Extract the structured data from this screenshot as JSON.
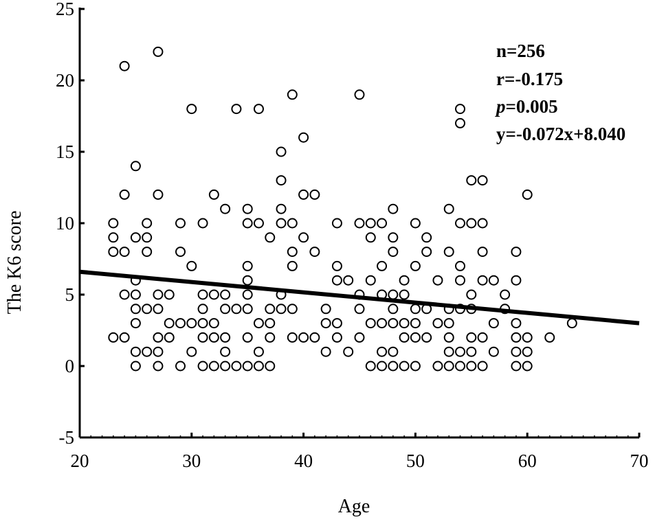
{
  "chart_data": {
    "type": "scatter",
    "xlabel": "Age",
    "ylabel": "The K6 score",
    "xlim": [
      20,
      70
    ],
    "ylim": [
      -5,
      25
    ],
    "xticks": [
      "20",
      "30",
      "40",
      "50",
      "60",
      "70"
    ],
    "yticks": [
      "-5",
      "0",
      "5",
      "10",
      "15",
      "20",
      "25"
    ],
    "grid": false,
    "marker": "open-circle",
    "annotations": [
      "n=256",
      "r=-0.175",
      "p",
      "=0.005",
      "y=-0.072x+8.040"
    ],
    "regression": {
      "slope": -0.072,
      "intercept": 8.04,
      "x_range": [
        20,
        70
      ]
    },
    "points": [
      [
        23,
        10
      ],
      [
        23,
        9
      ],
      [
        23,
        8
      ],
      [
        23,
        2
      ],
      [
        24,
        21
      ],
      [
        24,
        12
      ],
      [
        24,
        8
      ],
      [
        24,
        5
      ],
      [
        24,
        2
      ],
      [
        25,
        14
      ],
      [
        25,
        9
      ],
      [
        25,
        6
      ],
      [
        25,
        5
      ],
      [
        25,
        4
      ],
      [
        25,
        3
      ],
      [
        25,
        1
      ],
      [
        25,
        0
      ],
      [
        26,
        10
      ],
      [
        26,
        9
      ],
      [
        26,
        8
      ],
      [
        26,
        4
      ],
      [
        26,
        1
      ],
      [
        27,
        22
      ],
      [
        27,
        12
      ],
      [
        27,
        5
      ],
      [
        27,
        4
      ],
      [
        27,
        2
      ],
      [
        27,
        1
      ],
      [
        27,
        0
      ],
      [
        28,
        5
      ],
      [
        28,
        3
      ],
      [
        28,
        2
      ],
      [
        29,
        10
      ],
      [
        29,
        8
      ],
      [
        29,
        3
      ],
      [
        29,
        0
      ],
      [
        30,
        18
      ],
      [
        30,
        7
      ],
      [
        30,
        3
      ],
      [
        30,
        1
      ],
      [
        31,
        10
      ],
      [
        31,
        5
      ],
      [
        31,
        4
      ],
      [
        31,
        3
      ],
      [
        31,
        2
      ],
      [
        31,
        0
      ],
      [
        32,
        12
      ],
      [
        32,
        5
      ],
      [
        32,
        3
      ],
      [
        32,
        2
      ],
      [
        32,
        0
      ],
      [
        33,
        11
      ],
      [
        33,
        5
      ],
      [
        33,
        4
      ],
      [
        33,
        2
      ],
      [
        33,
        1
      ],
      [
        33,
        0
      ],
      [
        34,
        18
      ],
      [
        34,
        4
      ],
      [
        34,
        0
      ],
      [
        35,
        11
      ],
      [
        35,
        10
      ],
      [
        35,
        7
      ],
      [
        35,
        6
      ],
      [
        35,
        5
      ],
      [
        35,
        4
      ],
      [
        35,
        2
      ],
      [
        35,
        0
      ],
      [
        36,
        18
      ],
      [
        36,
        10
      ],
      [
        36,
        3
      ],
      [
        36,
        1
      ],
      [
        36,
        0
      ],
      [
        37,
        9
      ],
      [
        37,
        4
      ],
      [
        37,
        3
      ],
      [
        37,
        2
      ],
      [
        37,
        0
      ],
      [
        38,
        15
      ],
      [
        38,
        13
      ],
      [
        38,
        11
      ],
      [
        38,
        10
      ],
      [
        38,
        5
      ],
      [
        38,
        4
      ],
      [
        39,
        19
      ],
      [
        39,
        10
      ],
      [
        39,
        8
      ],
      [
        39,
        7
      ],
      [
        39,
        4
      ],
      [
        39,
        2
      ],
      [
        40,
        16
      ],
      [
        40,
        12
      ],
      [
        40,
        9
      ],
      [
        40,
        2
      ],
      [
        41,
        12
      ],
      [
        41,
        8
      ],
      [
        41,
        2
      ],
      [
        42,
        4
      ],
      [
        42,
        3
      ],
      [
        42,
        1
      ],
      [
        43,
        10
      ],
      [
        43,
        7
      ],
      [
        43,
        6
      ],
      [
        43,
        3
      ],
      [
        43,
        2
      ],
      [
        44,
        6
      ],
      [
        44,
        1
      ],
      [
        45,
        19
      ],
      [
        45,
        10
      ],
      [
        45,
        5
      ],
      [
        45,
        4
      ],
      [
        45,
        2
      ],
      [
        46,
        10
      ],
      [
        46,
        9
      ],
      [
        46,
        6
      ],
      [
        46,
        3
      ],
      [
        46,
        0
      ],
      [
        47,
        10
      ],
      [
        47,
        7
      ],
      [
        47,
        5
      ],
      [
        47,
        3
      ],
      [
        47,
        1
      ],
      [
        47,
        0
      ],
      [
        48,
        11
      ],
      [
        48,
        9
      ],
      [
        48,
        8
      ],
      [
        48,
        5
      ],
      [
        48,
        4
      ],
      [
        48,
        3
      ],
      [
        48,
        1
      ],
      [
        48,
        0
      ],
      [
        49,
        6
      ],
      [
        49,
        5
      ],
      [
        49,
        3
      ],
      [
        49,
        2
      ],
      [
        49,
        0
      ],
      [
        50,
        10
      ],
      [
        50,
        7
      ],
      [
        50,
        4
      ],
      [
        50,
        3
      ],
      [
        50,
        2
      ],
      [
        50,
        0
      ],
      [
        51,
        9
      ],
      [
        51,
        8
      ],
      [
        51,
        4
      ],
      [
        51,
        2
      ],
      [
        52,
        6
      ],
      [
        52,
        3
      ],
      [
        52,
        0
      ],
      [
        53,
        11
      ],
      [
        53,
        8
      ],
      [
        53,
        4
      ],
      [
        53,
        3
      ],
      [
        53,
        2
      ],
      [
        53,
        1
      ],
      [
        53,
        0
      ],
      [
        54,
        18
      ],
      [
        54,
        17
      ],
      [
        54,
        10
      ],
      [
        54,
        7
      ],
      [
        54,
        6
      ],
      [
        54,
        4
      ],
      [
        54,
        1
      ],
      [
        54,
        0
      ],
      [
        55,
        13
      ],
      [
        55,
        10
      ],
      [
        55,
        5
      ],
      [
        55,
        4
      ],
      [
        55,
        2
      ],
      [
        55,
        1
      ],
      [
        55,
        0
      ],
      [
        56,
        13
      ],
      [
        56,
        10
      ],
      [
        56,
        8
      ],
      [
        56,
        6
      ],
      [
        56,
        2
      ],
      [
        56,
        0
      ],
      [
        57,
        6
      ],
      [
        57,
        3
      ],
      [
        57,
        1
      ],
      [
        58,
        5
      ],
      [
        58,
        4
      ],
      [
        59,
        8
      ],
      [
        59,
        6
      ],
      [
        59,
        3
      ],
      [
        59,
        2
      ],
      [
        59,
        1
      ],
      [
        59,
        0
      ],
      [
        60,
        12
      ],
      [
        60,
        2
      ],
      [
        60,
        1
      ],
      [
        60,
        0
      ],
      [
        62,
        2
      ],
      [
        64,
        3
      ]
    ]
  }
}
